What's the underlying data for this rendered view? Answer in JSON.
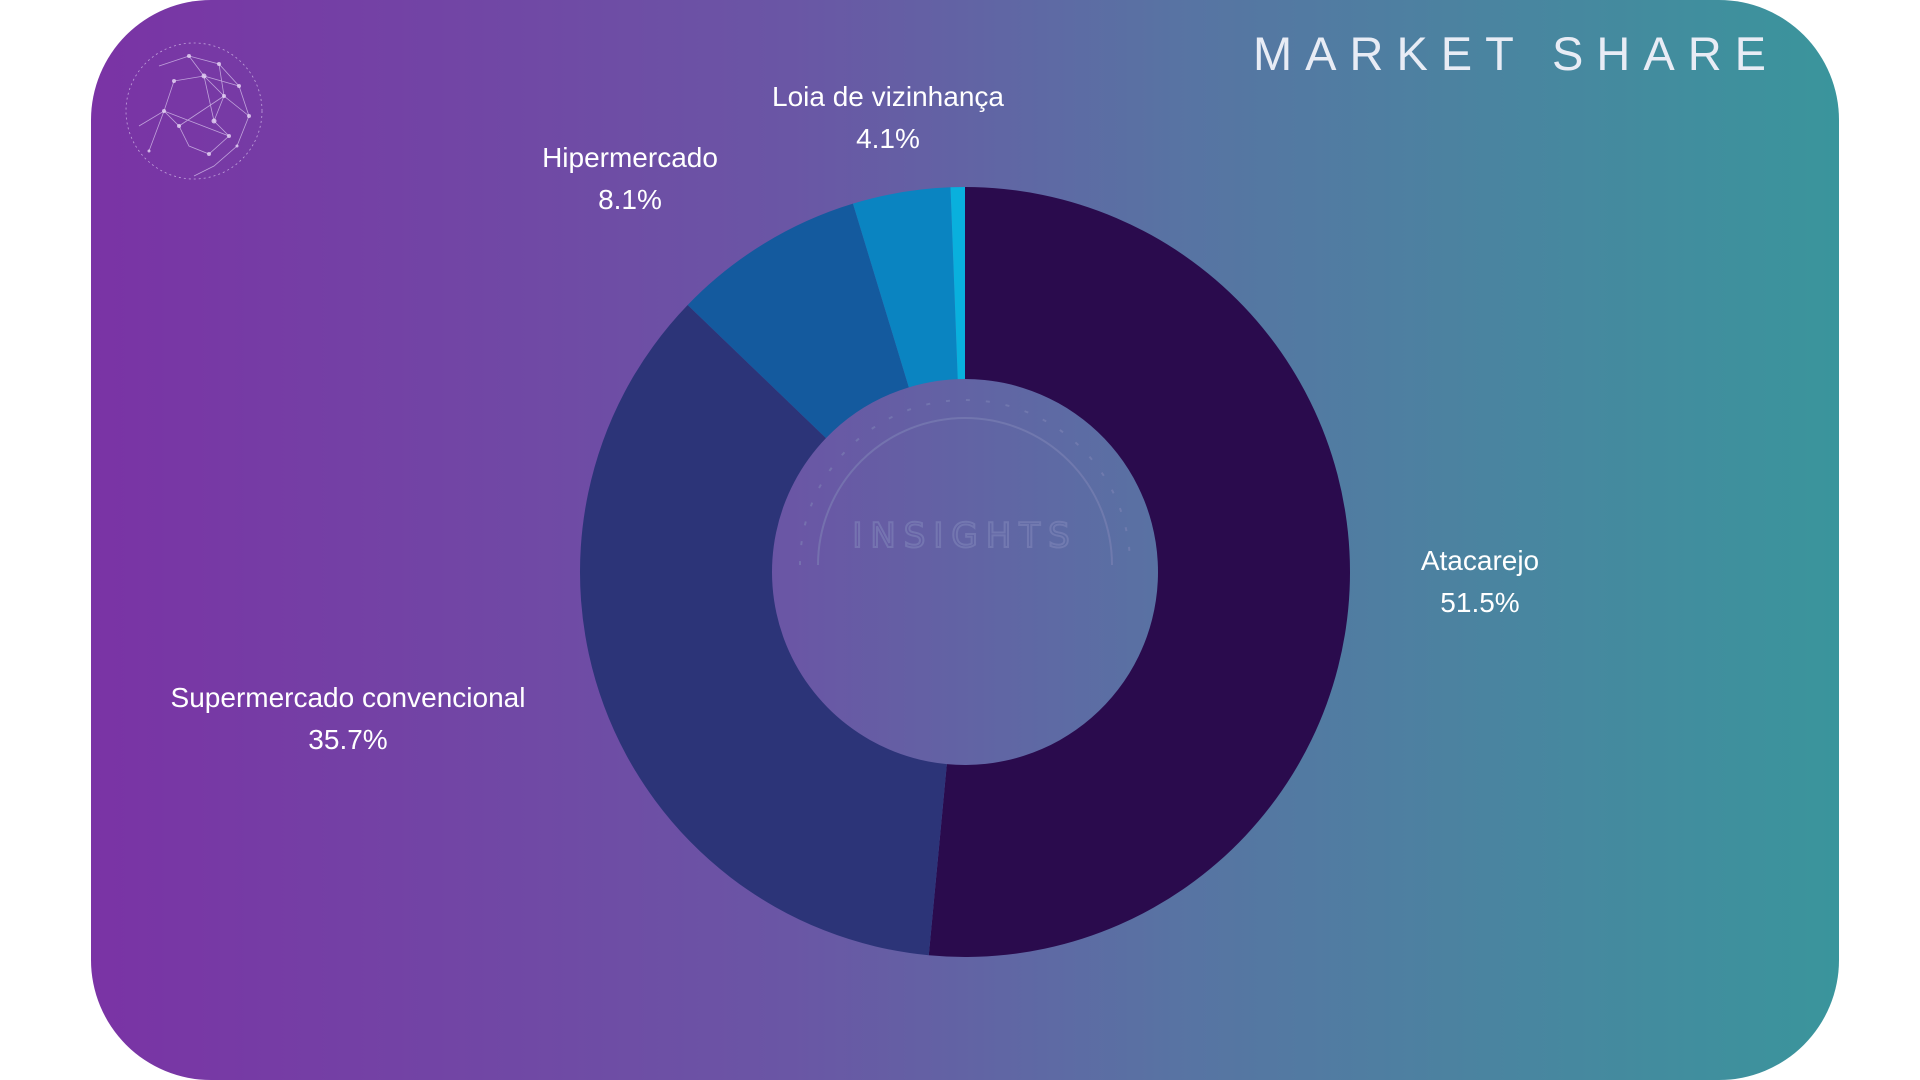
{
  "chart_data": {
    "type": "pie",
    "title": "MARKET SHARE",
    "categories": [
      "Atacarejo",
      "Supermercado convencional",
      "Hipermercado",
      "Loia de vizinhança",
      ""
    ],
    "values": [
      51.5,
      35.7,
      8.1,
      4.1,
      0.6
    ],
    "labels": [
      "51.5%",
      "35.7%",
      "8.1%",
      "4.1%",
      ""
    ],
    "colors": [
      "#2a0b4d",
      "#2c3478",
      "#145a9e",
      "#0a84c1",
      "#09b0dd"
    ],
    "donut": true,
    "watermark": "INSIGHTS"
  }
}
